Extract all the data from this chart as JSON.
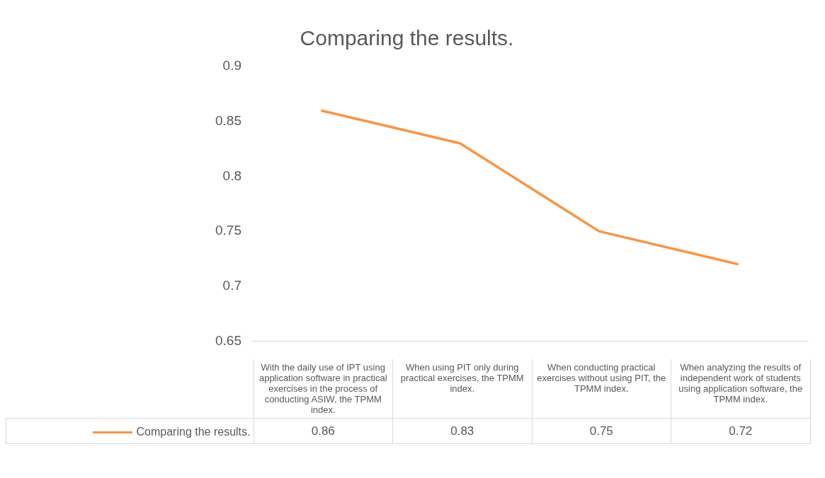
{
  "chart_data": {
    "type": "line",
    "title": "Comparing the results.",
    "categories": [
      "With the daily use of IPT using application software in practical exercises in the process of conducting ASIW, the TPMM index.",
      "When using PIT only during practical exercises, the TPMM index.",
      "When conducting practical exercises without using PIT, the TPMM index.",
      "When analyzing the results of independent work of students using application software, the TPMM index."
    ],
    "series": [
      {
        "name": "Comparing the results.",
        "color": "#f79646",
        "values": [
          0.86,
          0.83,
          0.75,
          0.72
        ]
      }
    ],
    "ylim": [
      0.65,
      0.9
    ],
    "yticks": [
      0.65,
      0.7,
      0.75,
      0.8,
      0.85,
      0.9
    ],
    "grid": false,
    "legend": "bottom",
    "data_labels": true,
    "marker": "none"
  }
}
